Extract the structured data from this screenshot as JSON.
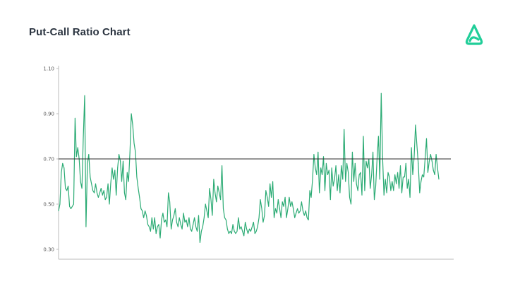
{
  "header": {
    "title": "Put-Call Ratio Chart",
    "logo_icon": "robinhood-feather-logo-icon"
  },
  "colors": {
    "line": "#2bab74",
    "reference_line": "#2b2b2b",
    "axis": "#bbbbbb",
    "logo": "#21ce99"
  },
  "chart_data": {
    "type": "line",
    "title": "Put-Call Ratio Chart",
    "xlabel": "",
    "ylabel": "",
    "ylim": [
      0.3,
      1.1
    ],
    "yticks": [
      {
        "value": 1.1,
        "label": "1.10"
      },
      {
        "value": 0.9,
        "label": "0.90"
      },
      {
        "value": 0.7,
        "label": "0.70"
      },
      {
        "value": 0.5,
        "label": "0.50"
      },
      {
        "value": 0.3,
        "label": "0.30"
      }
    ],
    "reference_line": 0.7,
    "grid": false,
    "legend": "none",
    "series": [
      {
        "values": [
          0.47,
          0.5,
          0.64,
          0.68,
          0.66,
          0.57,
          0.56,
          0.58,
          0.49,
          0.48,
          0.49,
          0.5,
          0.88,
          0.71,
          0.75,
          0.7,
          0.6,
          0.57,
          0.79,
          0.98,
          0.4,
          0.68,
          0.72,
          0.62,
          0.59,
          0.56,
          0.55,
          0.59,
          0.55,
          0.53,
          0.55,
          0.57,
          0.54,
          0.56,
          0.52,
          0.53,
          0.59,
          0.5,
          0.59,
          0.66,
          0.61,
          0.65,
          0.54,
          0.66,
          0.72,
          0.69,
          0.6,
          0.69,
          0.55,
          0.52,
          0.64,
          0.6,
          0.73,
          0.9,
          0.85,
          0.77,
          0.73,
          0.62,
          0.57,
          0.53,
          0.48,
          0.47,
          0.44,
          0.47,
          0.45,
          0.41,
          0.4,
          0.38,
          0.44,
          0.39,
          0.44,
          0.37,
          0.4,
          0.41,
          0.35,
          0.43,
          0.46,
          0.42,
          0.43,
          0.4,
          0.55,
          0.51,
          0.39,
          0.43,
          0.45,
          0.48,
          0.42,
          0.4,
          0.44,
          0.41,
          0.39,
          0.46,
          0.42,
          0.43,
          0.4,
          0.44,
          0.39,
          0.38,
          0.41,
          0.44,
          0.4,
          0.38,
          0.45,
          0.33,
          0.38,
          0.4,
          0.44,
          0.5,
          0.47,
          0.44,
          0.57,
          0.52,
          0.45,
          0.61,
          0.55,
          0.51,
          0.58,
          0.55,
          0.52,
          0.67,
          0.48,
          0.44,
          0.43,
          0.39,
          0.37,
          0.38,
          0.37,
          0.41,
          0.38,
          0.37,
          0.38,
          0.44,
          0.39,
          0.4,
          0.38,
          0.36,
          0.42,
          0.39,
          0.37,
          0.39,
          0.38,
          0.4,
          0.42,
          0.37,
          0.38,
          0.4,
          0.44,
          0.52,
          0.48,
          0.42,
          0.45,
          0.56,
          0.53,
          0.49,
          0.59,
          0.53,
          0.6,
          0.44,
          0.48,
          0.46,
          0.52,
          0.48,
          0.44,
          0.51,
          0.49,
          0.53,
          0.44,
          0.48,
          0.53,
          0.49,
          0.51,
          0.48,
          0.44,
          0.46,
          0.48,
          0.46,
          0.47,
          0.51,
          0.47,
          0.45,
          0.47,
          0.44,
          0.43,
          0.56,
          0.53,
          0.61,
          0.72,
          0.66,
          0.63,
          0.73,
          0.55,
          0.66,
          0.63,
          0.71,
          0.56,
          0.68,
          0.63,
          0.65,
          0.52,
          0.66,
          0.58,
          0.61,
          0.67,
          0.56,
          0.63,
          0.55,
          0.67,
          0.61,
          0.83,
          0.6,
          0.68,
          0.64,
          0.53,
          0.5,
          0.73,
          0.6,
          0.68,
          0.59,
          0.56,
          0.63,
          0.64,
          0.54,
          0.8,
          0.56,
          0.69,
          0.66,
          0.7,
          0.57,
          0.63,
          0.73,
          0.52,
          0.58,
          0.7,
          0.8,
          0.61,
          0.99,
          0.71,
          0.54,
          0.61,
          0.55,
          0.64,
          0.62,
          0.56,
          0.6,
          0.56,
          0.63,
          0.59,
          0.64,
          0.57,
          0.67,
          0.55,
          0.62,
          0.62,
          0.68,
          0.57,
          0.61,
          0.53,
          0.75,
          0.63,
          0.71,
          0.85,
          0.76,
          0.68,
          0.55,
          0.6,
          0.63,
          0.62,
          0.7,
          0.79,
          0.64,
          0.69,
          0.72,
          0.69,
          0.65,
          0.63,
          0.72,
          0.66,
          0.61
        ]
      }
    ]
  }
}
